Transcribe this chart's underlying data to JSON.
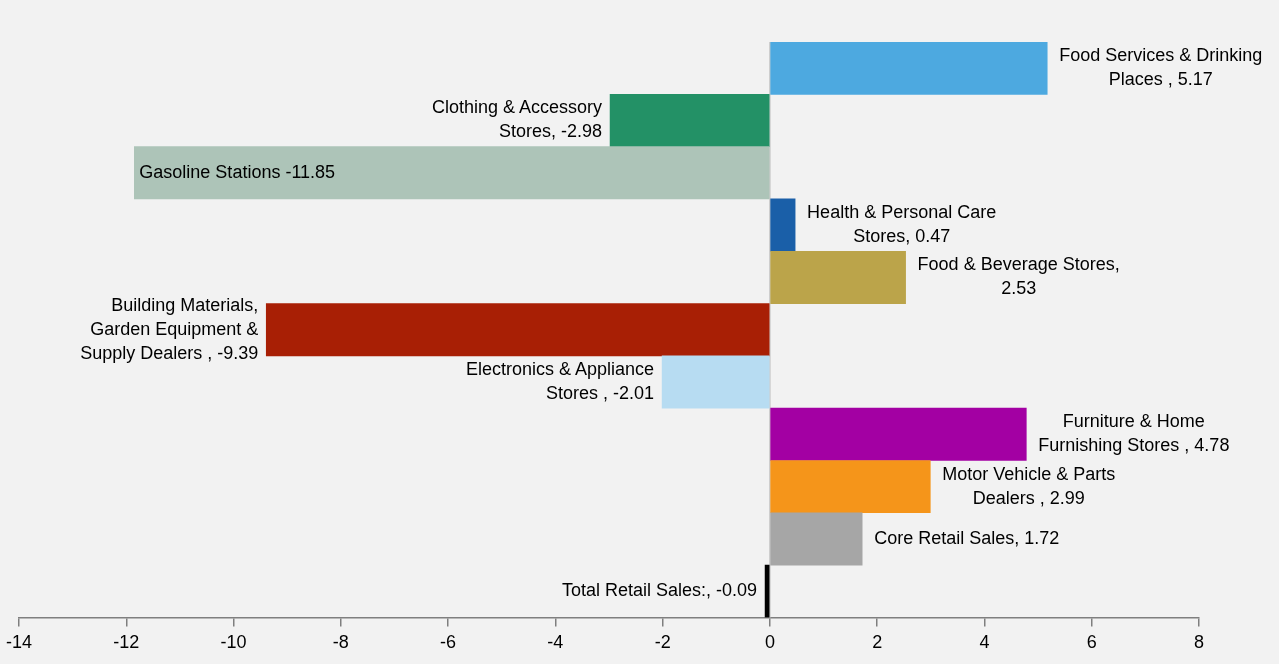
{
  "chart_data": {
    "type": "bar",
    "orientation": "horizontal",
    "categories": [
      null,
      null,
      null,
      null,
      null,
      null,
      null,
      null,
      null,
      null,
      null
    ],
    "values": [
      5.17,
      -2.98,
      -11.85,
      0.47,
      2.53,
      -9.39,
      -2.01,
      4.78,
      2.99,
      1.72,
      -0.09
    ],
    "colors": [
      "#4da9e0",
      "#239166",
      "#adc4b8",
      "#1a5fa8",
      "#bba44a",
      "#a81f05",
      "#b7dcf2",
      "#a300a3",
      "#f5951a",
      "#a6a6a6",
      "#000000"
    ],
    "value_labels": [
      "Food Services & Drinking Places , 5.17",
      "Clothing & Accessory Stores, -2.98",
      "Gasoline Stations -11.85",
      "Health & Personal Care Stores, 0.47",
      "Food & Beverage Stores, 2.53",
      "Building Materials, Garden Equipment & Supply Dealers , -9.39",
      "Electronics & Appliance Stores , -2.01",
      "Furniture & Home Furnishing Stores , 4.78",
      "Motor Vehicle & Parts Dealers , 2.99",
      "Core Retail Sales, 1.72",
      "Total Retail Sales:, -0.09"
    ],
    "xlim": [
      -14,
      8
    ],
    "xticks": [
      -14,
      -12,
      -10,
      -8,
      -6,
      -4,
      -2,
      0,
      2,
      4,
      6,
      8
    ],
    "ref_lines": [
      {
        "axis": "x",
        "value": 0,
        "color": "#c8c8c8"
      }
    ],
    "grid": false,
    "legend": false
  }
}
